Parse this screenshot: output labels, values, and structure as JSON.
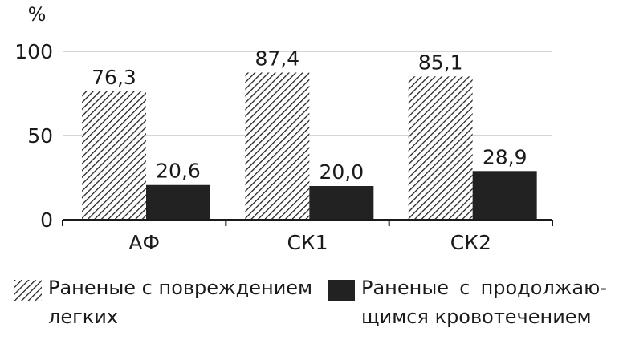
{
  "chart_data": {
    "type": "bar",
    "unit_label": "%",
    "categories": [
      "АФ",
      "СК1",
      "СК2"
    ],
    "yticks": [
      "0",
      "50",
      "100"
    ],
    "ylim": [
      0,
      100
    ],
    "series": [
      {
        "name": "Раненые с повреждением легких",
        "pattern": "hatched",
        "values": [
          76.3,
          87.4,
          85.1
        ],
        "labels": [
          "76,3",
          "87,4",
          "85,1"
        ]
      },
      {
        "name": "Раненые с продолжающимся кровотечением",
        "color": "#222222",
        "values": [
          20.6,
          20.0,
          28.9
        ],
        "labels": [
          "20,6",
          "20,0",
          "28,9"
        ]
      }
    ]
  },
  "legend": {
    "item1_line1": "Раненые с повреждением",
    "item1_line2": "легких",
    "item2_line1": "Раненые с продолжаю-",
    "item2_line2": "щимся кровотечением"
  }
}
